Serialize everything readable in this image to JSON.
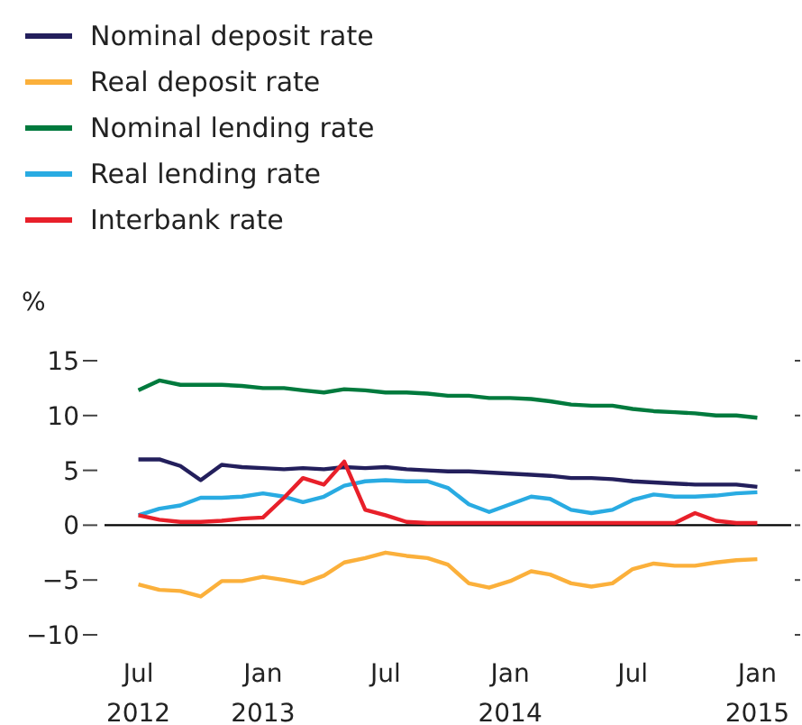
{
  "chart_data": {
    "type": "line",
    "ylabel": "%",
    "x": [
      "2012-07",
      "2012-08",
      "2012-09",
      "2012-10",
      "2012-11",
      "2012-12",
      "2013-01",
      "2013-02",
      "2013-03",
      "2013-04",
      "2013-05",
      "2013-06",
      "2013-07",
      "2013-08",
      "2013-09",
      "2013-10",
      "2013-11",
      "2013-12",
      "2014-01",
      "2014-02",
      "2014-03",
      "2014-04",
      "2014-05",
      "2014-06",
      "2014-07",
      "2014-08",
      "2014-09",
      "2014-10",
      "2014-11",
      "2014-12",
      "2015-01"
    ],
    "series": [
      {
        "name": "Nominal deposit rate",
        "color": "#231f5c",
        "values": [
          6.0,
          6.0,
          5.4,
          4.1,
          5.5,
          5.3,
          5.2,
          5.1,
          5.2,
          5.1,
          5.3,
          5.2,
          5.3,
          5.1,
          5.0,
          4.9,
          4.9,
          4.8,
          4.7,
          4.6,
          4.5,
          4.3,
          4.3,
          4.2,
          4.0,
          3.9,
          3.8,
          3.7,
          3.7,
          3.7,
          3.5
        ]
      },
      {
        "name": "Real deposit rate",
        "color": "#fbb03b",
        "values": [
          -5.4,
          -5.9,
          -6.0,
          -6.5,
          -5.1,
          -5.1,
          -4.7,
          -5.0,
          -5.3,
          -4.6,
          -3.4,
          -3.0,
          -2.5,
          -2.8,
          -3.0,
          -3.6,
          -5.3,
          -5.7,
          -5.1,
          -4.2,
          -4.5,
          -5.3,
          -5.6,
          -5.3,
          -4.0,
          -3.5,
          -3.7,
          -3.7,
          -3.4,
          -3.2,
          -3.1
        ]
      },
      {
        "name": "Nominal lending rate",
        "color": "#007a3d",
        "values": [
          12.3,
          13.2,
          12.8,
          12.8,
          12.8,
          12.7,
          12.5,
          12.5,
          12.3,
          12.1,
          12.4,
          12.3,
          12.1,
          12.1,
          12.0,
          11.8,
          11.8,
          11.6,
          11.6,
          11.5,
          11.3,
          11.0,
          10.9,
          10.9,
          10.6,
          10.4,
          10.3,
          10.2,
          10.0,
          10.0,
          9.8
        ]
      },
      {
        "name": "Real lending rate",
        "color": "#29abe2",
        "values": [
          0.9,
          1.5,
          1.8,
          2.5,
          2.5,
          2.6,
          2.9,
          2.6,
          2.1,
          2.6,
          3.6,
          4.0,
          4.1,
          4.0,
          4.0,
          3.4,
          1.9,
          1.2,
          1.9,
          2.6,
          2.4,
          1.4,
          1.1,
          1.4,
          2.3,
          2.8,
          2.6,
          2.6,
          2.7,
          2.9,
          3.0
        ]
      },
      {
        "name": "Interbank rate",
        "color": "#e8202a",
        "values": [
          0.9,
          0.5,
          0.3,
          0.3,
          0.4,
          0.6,
          0.7,
          2.5,
          4.3,
          3.7,
          5.8,
          1.4,
          0.9,
          0.3,
          0.2,
          0.2,
          0.2,
          0.2,
          0.2,
          0.2,
          0.2,
          0.2,
          0.2,
          0.2,
          0.2,
          0.2,
          0.2,
          1.1,
          0.4,
          0.2,
          0.2
        ]
      }
    ],
    "xlim": [
      "2012-05-12",
      "2015-02-20"
    ],
    "xticks": [
      {
        "value": "2012-07",
        "label": "Jul\n2012"
      },
      {
        "value": "2013-01",
        "label": "Jan\n2013"
      },
      {
        "value": "2013-07",
        "label": "Jul"
      },
      {
        "value": "2014-01",
        "label": "Jan\n2014"
      },
      {
        "value": "2014-07",
        "label": "Jul"
      },
      {
        "value": "2015-01",
        "label": "Jan\n2015"
      }
    ],
    "ylim": [
      -10,
      15
    ],
    "yticks": [
      {
        "value": 15,
        "label": "15"
      },
      {
        "value": 10,
        "label": "10"
      },
      {
        "value": 5,
        "label": "5"
      },
      {
        "value": 0,
        "label": "0"
      },
      {
        "value": -5,
        "label": "−5"
      },
      {
        "value": -10,
        "label": "−10"
      }
    ],
    "ref_lines": [
      {
        "axis": "y",
        "value": 0,
        "color": "#000000"
      }
    ],
    "legend": "top left",
    "grid": false,
    "marker": "none",
    "line_style": "solid"
  }
}
